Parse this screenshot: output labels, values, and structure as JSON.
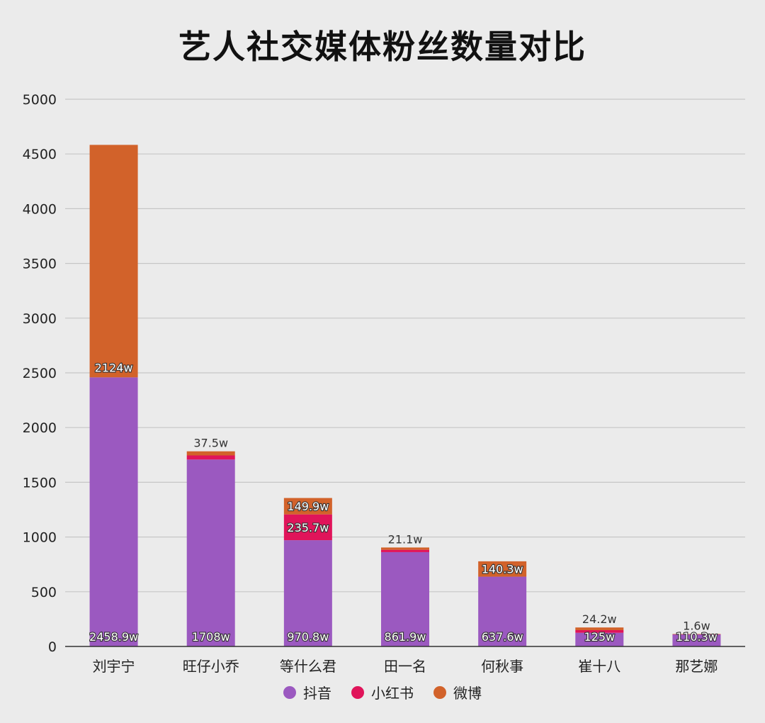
{
  "chart_data": {
    "type": "bar",
    "stacked": true,
    "title": "艺人社交媒体粉丝数量对比",
    "categories": [
      "刘宇宁",
      "旺仔小乔",
      "等什么君",
      "田一名",
      "何秋事",
      "崔十八",
      "那艺娜"
    ],
    "series": [
      {
        "name": "抖音",
        "color": "#9b59c0",
        "values": [
          2458.9,
          1708,
          970.8,
          861.9,
          637.6,
          125,
          110.3
        ],
        "labels": [
          "2458.9w",
          "1708w",
          "970.8w",
          "861.9w",
          "637.6w",
          "125w",
          "110.3w"
        ]
      },
      {
        "name": "小红书",
        "color": "#e0145a",
        "values": [
          0,
          37.5,
          235.7,
          21.1,
          0,
          24.2,
          1.6
        ],
        "labels": [
          "",
          "37.5w",
          "235.7w",
          "21.1w",
          "",
          "24.2w",
          "1.6w"
        ]
      },
      {
        "name": "微博",
        "color": "#d2622a",
        "values": [
          2124,
          37.5,
          149.9,
          21.1,
          140.3,
          24.2,
          1.6
        ],
        "labels": [
          "2124w",
          "",
          "149.9w",
          "",
          "140.3w",
          "",
          ""
        ]
      }
    ],
    "yticks": [
      0,
      500,
      1000,
      1500,
      2000,
      2500,
      3000,
      3500,
      4000,
      4500,
      5000
    ],
    "ylim": [
      0,
      5000
    ],
    "grid": true,
    "legend_position": "bottom",
    "xlabel": "",
    "ylabel": ""
  }
}
